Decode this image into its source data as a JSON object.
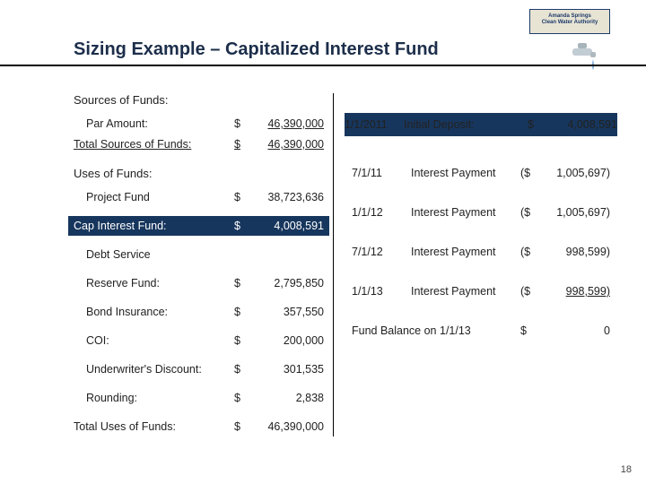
{
  "logo": {
    "line1": "Amanda Springs",
    "line2": "Clean Water Authority"
  },
  "title": "Sizing Example – Capitalized Interest Fund",
  "page_number": "18",
  "left": {
    "sources_header": "Sources of Funds:",
    "par_label": "Par Amount:",
    "par_value": "46,390,000",
    "total_sources_label": "Total Sources of Funds:",
    "total_sources_value": "46,390,000",
    "uses_header": "Uses of Funds:",
    "rows": [
      {
        "label": "Project Fund",
        "value": "38,723,636",
        "hl": false
      },
      {
        "label": "Cap Interest Fund:",
        "value": "4,008,591",
        "hl": true
      },
      {
        "label": "Debt Service",
        "value": "",
        "hl": false
      },
      {
        "label": "Reserve Fund:",
        "value": "2,795,850",
        "hl": false
      },
      {
        "label": "Bond Insurance:",
        "value": "357,550",
        "hl": false
      },
      {
        "label": "COI:",
        "value": "200,000",
        "hl": false
      },
      {
        "label": "Underwriter's Discount:",
        "value": "301,535",
        "hl": false
      },
      {
        "label": "Rounding:",
        "value": "2,838",
        "hl": false
      }
    ],
    "total_uses_label": "Total Uses of Funds:",
    "total_uses_value": "46,390,000"
  },
  "right": {
    "rows": [
      {
        "date": "1/1/2011",
        "label": "Initial Deposit:",
        "sym": "$",
        "value": "4,008,591",
        "hl": true,
        "ul": false
      },
      {
        "date": "7/1/11",
        "label": "Interest Payment",
        "sym": "($",
        "value": "1,005,697)",
        "hl": false,
        "ul": false
      },
      {
        "date": "1/1/12",
        "label": "Interest Payment",
        "sym": "($",
        "value": "1,005,697)",
        "hl": false,
        "ul": false
      },
      {
        "date": "7/1/12",
        "label": "Interest Payment",
        "sym": "($",
        "value": "998,599)",
        "hl": false,
        "ul": false
      },
      {
        "date": "1/1/13",
        "label": "Interest Payment",
        "sym": "($",
        "value": "998,599)",
        "hl": false,
        "ul": true
      },
      {
        "date": "",
        "label": "Fund Balance on 1/1/13",
        "sym": "$",
        "value": "0",
        "hl": false,
        "ul": false
      }
    ]
  }
}
